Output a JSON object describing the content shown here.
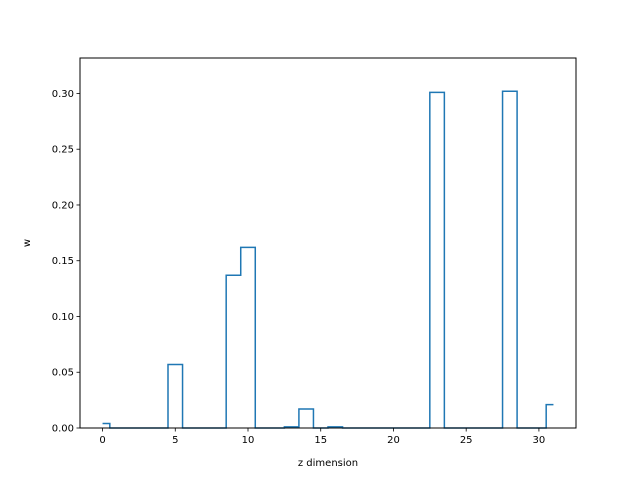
{
  "chart_data": {
    "type": "line",
    "drawstyle": "steps-mid",
    "title": "",
    "xlabel": "z dimension",
    "ylabel": "w",
    "xlim": [
      -1.55,
      32.55
    ],
    "ylim": [
      0.0,
      0.3318
    ],
    "xticks": [
      0,
      5,
      10,
      15,
      20,
      25,
      30
    ],
    "yticks": [
      0.0,
      0.05,
      0.1,
      0.15,
      0.2,
      0.25,
      0.3
    ],
    "ytick_labels": [
      "0.00",
      "0.05",
      "0.10",
      "0.15",
      "0.20",
      "0.25",
      "0.30"
    ],
    "grid": false,
    "series": [
      {
        "color": "#1f77b4",
        "x": [
          0,
          1,
          2,
          3,
          4,
          5,
          6,
          7,
          8,
          9,
          10,
          11,
          12,
          13,
          14,
          15,
          16,
          17,
          18,
          19,
          20,
          21,
          22,
          23,
          24,
          25,
          26,
          27,
          28,
          29,
          30,
          31
        ],
        "values": [
          0.004,
          0.0,
          0.0,
          0.0,
          0.0,
          0.057,
          0.0,
          0.0,
          0.0,
          0.137,
          0.162,
          0.0,
          0.0,
          0.001,
          0.017,
          0.0,
          0.001,
          0.0,
          0.0,
          0.0,
          0.0,
          0.0,
          0.0,
          0.301,
          0.0,
          0.0,
          0.0,
          0.0,
          0.302,
          0.0,
          0.0,
          0.021
        ]
      }
    ]
  }
}
